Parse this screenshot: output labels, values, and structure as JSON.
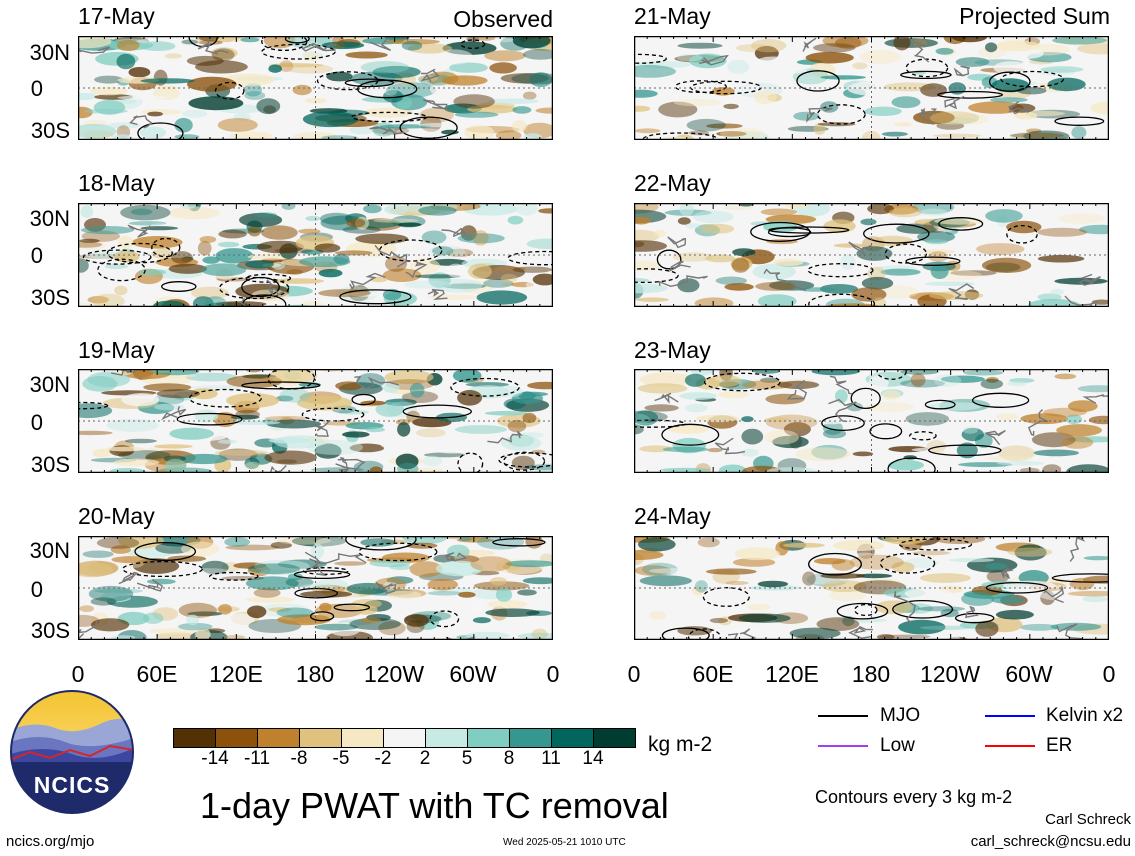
{
  "panels_observed": [
    {
      "date": "17-May",
      "tag": "Observed"
    },
    {
      "date": "18-May",
      "tag": ""
    },
    {
      "date": "19-May",
      "tag": ""
    },
    {
      "date": "20-May",
      "tag": ""
    }
  ],
  "panels_projected": [
    {
      "date": "21-May",
      "tag": "Projected Sum"
    },
    {
      "date": "22-May",
      "tag": ""
    },
    {
      "date": "23-May",
      "tag": ""
    },
    {
      "date": "24-May",
      "tag": ""
    }
  ],
  "lat_labels": [
    "30N",
    "0",
    "30S"
  ],
  "lon_labels": [
    "0",
    "60E",
    "120E",
    "180",
    "120W",
    "60W",
    "0"
  ],
  "colorbar": {
    "colors": [
      "#543005",
      "#8c510a",
      "#bf812d",
      "#dfc27d",
      "#f6e8c3",
      "#f5f5f5",
      "#c7eae5",
      "#80cdc1",
      "#35978f",
      "#01665e",
      "#003c30"
    ],
    "ticks": [
      "-14",
      "-11",
      "-8",
      "-5",
      "-2",
      "2",
      "5",
      "8",
      "11",
      "14"
    ],
    "unit": "kg m-2"
  },
  "title": "1-day PWAT with TC removal",
  "legend": [
    {
      "label": "MJO",
      "color": "#000000"
    },
    {
      "label": "Kelvin x2",
      "color": "#0000ff"
    },
    {
      "label": "Low",
      "color": "#a040f0"
    },
    {
      "label": "ER",
      "color": "#ff0000"
    }
  ],
  "contour_note": "Contours every 3 kg m-2",
  "author": "Carl Schreck",
  "email": "carl_schreck@ncsu.edu",
  "site": "ncics.org/mjo",
  "timestamp": "Wed 2025-05-21 1010 UTC",
  "logo_text": "NCICS"
}
